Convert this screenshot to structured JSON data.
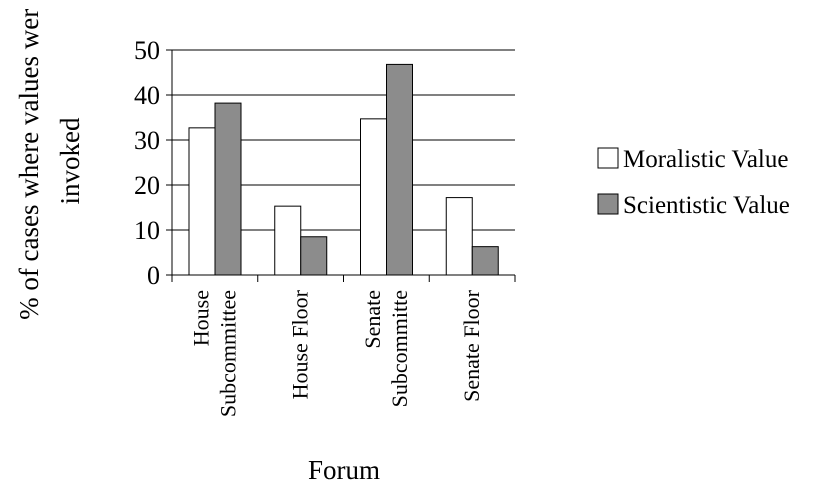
{
  "chart_data": {
    "type": "bar",
    "title": "",
    "xlabel": "Forum",
    "ylabel_lines": [
      "% of cases where values wer",
      "invoked"
    ],
    "categories": [
      [
        "House",
        "Subcommittee"
      ],
      [
        "House Floor"
      ],
      [
        "Senate",
        "Subcommitte"
      ],
      [
        "Senate Floor"
      ]
    ],
    "series": [
      {
        "name": "Moralistic Value",
        "values": [
          32.7,
          15.3,
          34.7,
          17.2
        ],
        "color": "#ffffff"
      },
      {
        "name": "Scientistic Value",
        "values": [
          38.2,
          8.5,
          46.8,
          6.3
        ],
        "color": "#8c8c8c"
      }
    ],
    "ylim": [
      0,
      50
    ],
    "yticks": [
      "0",
      "10",
      "20",
      "30",
      "40",
      "50"
    ],
    "grid": true,
    "legend_position": "right"
  }
}
